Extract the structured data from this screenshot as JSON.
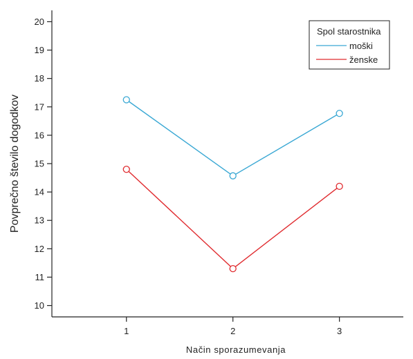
{
  "chart_data": {
    "type": "line",
    "xlabel": "Način sporazumevanja",
    "ylabel": "Povprečno število dogodkov",
    "x": [
      1,
      2,
      3
    ],
    "xlim": [
      0.3,
      3.6
    ],
    "ylim": [
      9.6,
      20.4
    ],
    "yticks": [
      10,
      11,
      12,
      13,
      14,
      15,
      16,
      17,
      18,
      19,
      20
    ],
    "grid": false,
    "legend": {
      "title": "Spol starostnika",
      "placement": "top-right"
    },
    "series": [
      {
        "name": "moški",
        "values": [
          17.25,
          14.57,
          16.77
        ],
        "color": "#3aa8d4"
      },
      {
        "name": "ženske",
        "values": [
          14.8,
          11.3,
          14.2
        ],
        "color": "#e02b2f"
      }
    ]
  }
}
